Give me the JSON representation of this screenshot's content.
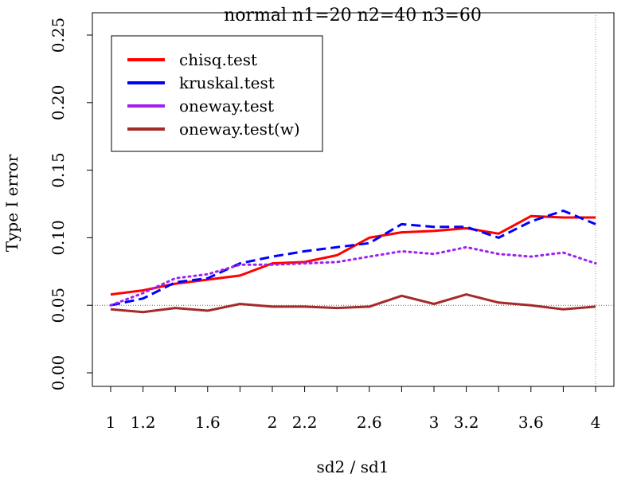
{
  "chart_data": {
    "type": "line",
    "title": "normal n1=20 n2=40 n3=60",
    "xlabel": "sd2 / sd1",
    "ylabel": "Type I error",
    "xlim": [
      1,
      4
    ],
    "ylim": [
      0,
      0.25
    ],
    "x_ticks": [
      1,
      1.2,
      1.6,
      2,
      2.2,
      2.6,
      3,
      3.2,
      3.6,
      4
    ],
    "x_tick_labels": [
      "1",
      "1.2",
      "1.6",
      "2",
      "2.2",
      "2.6",
      "3",
      "3.2",
      "3.6",
      "4"
    ],
    "x_minor_ticks": [
      1.4,
      1.8,
      2.4,
      2.8,
      3.4,
      3.8
    ],
    "y_ticks": [
      0,
      0.05,
      0.1,
      0.15,
      0.2,
      0.25
    ],
    "y_tick_labels": [
      "0.00",
      "0.05",
      "0.10",
      "0.15",
      "0.20",
      "0.25"
    ],
    "reference_hline": 0.05,
    "reference_vline": 4,
    "legend_position": "top-left",
    "x": [
      1,
      1.2,
      1.4,
      1.6,
      1.8,
      2,
      2.2,
      2.4,
      2.6,
      2.8,
      3,
      3.2,
      3.4,
      3.6,
      3.8,
      4
    ],
    "series": [
      {
        "name": "chisq.test",
        "color": "#ff0000",
        "style": "solid",
        "values": [
          0.058,
          0.061,
          0.066,
          0.069,
          0.072,
          0.081,
          0.082,
          0.087,
          0.1,
          0.104,
          0.105,
          0.107,
          0.103,
          0.116,
          0.115,
          0.115
        ]
      },
      {
        "name": "kruskal.test",
        "color": "#0000ff",
        "style": "dashed",
        "values": [
          0.05,
          0.055,
          0.067,
          0.07,
          0.081,
          0.086,
          0.09,
          0.093,
          0.096,
          0.11,
          0.108,
          0.108,
          0.1,
          0.112,
          0.12,
          0.11
        ]
      },
      {
        "name": "oneway.test",
        "color": "#a020f0",
        "style": "dotted",
        "values": [
          0.05,
          0.059,
          0.07,
          0.073,
          0.08,
          0.08,
          0.081,
          0.082,
          0.086,
          0.09,
          0.088,
          0.093,
          0.088,
          0.086,
          0.089,
          0.081
        ]
      },
      {
        "name": "oneway.test(w)",
        "color": "#a52a2a",
        "style": "solid",
        "values": [
          0.047,
          0.045,
          0.048,
          0.046,
          0.051,
          0.049,
          0.049,
          0.048,
          0.049,
          0.057,
          0.051,
          0.058,
          0.052,
          0.05,
          0.047,
          0.049
        ]
      }
    ]
  }
}
